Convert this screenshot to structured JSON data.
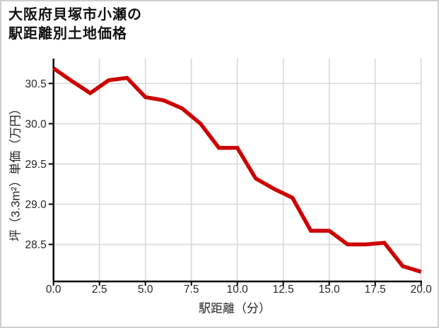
{
  "title": {
    "line1": "大阪府貝塚市小瀬の",
    "line2": "駅距離別土地価格"
  },
  "chart_data": {
    "type": "line",
    "title": "大阪府貝塚市小瀬の駅距離別土地価格",
    "xlabel": "駅距離（分）",
    "ylabel": "坪（3.3m²）単価（万円）",
    "series": [
      {
        "name": "駅距離別土地価格",
        "x": [
          0,
          1,
          2,
          3,
          4,
          5,
          6,
          7,
          8,
          9,
          10,
          11,
          12,
          13,
          14,
          15,
          16,
          17,
          18,
          19,
          20
        ],
        "y": [
          30.69,
          30.53,
          30.38,
          30.54,
          30.57,
          30.33,
          30.29,
          30.19,
          30.0,
          29.7,
          29.7,
          29.32,
          29.19,
          29.08,
          28.67,
          28.67,
          28.5,
          28.5,
          28.52,
          28.23,
          28.16
        ]
      }
    ],
    "xlim": [
      0,
      20
    ],
    "ylim": [
      28.04,
      30.81
    ],
    "xticks": [
      0,
      2.5,
      5,
      7.5,
      10,
      12.5,
      15,
      17.5,
      20
    ],
    "xtick_labels": [
      "0.0",
      "2.5",
      "5.0",
      "7.5",
      "10.0",
      "12.5",
      "15.0",
      "17.5",
      "20.0"
    ],
    "yticks": [
      30.5,
      30.0,
      29.5,
      29.0,
      28.5
    ],
    "ytick_labels": [
      "30.5",
      "30.0",
      "29.5",
      "29.0",
      "28.5"
    ],
    "grid": true,
    "legend": false,
    "line_color": "#cc0000",
    "axis_color": "#000000",
    "grid_color": "#d8d8d8",
    "tick_label_color": "#262626",
    "title_color": "#111111"
  }
}
